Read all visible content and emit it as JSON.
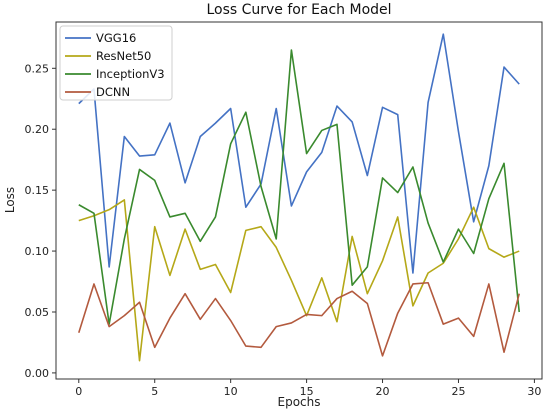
{
  "chart_data": {
    "type": "line",
    "title": "Loss Curve for Each Model",
    "xlabel": "Epochs",
    "ylabel": "Loss",
    "xlim": [
      -1.5,
      30.5
    ],
    "ylim": [
      -0.005,
      0.288
    ],
    "xticks": [
      0,
      5,
      10,
      15,
      20,
      25,
      30
    ],
    "yticks": [
      0.0,
      0.05,
      0.1,
      0.15,
      0.2,
      0.25
    ],
    "ytick_labels": [
      "0.00",
      "0.05",
      "0.10",
      "0.15",
      "0.20",
      "0.25"
    ],
    "grid": false,
    "legend_position": "top-left",
    "x": [
      0,
      1,
      2,
      3,
      4,
      5,
      6,
      7,
      8,
      9,
      10,
      11,
      12,
      13,
      14,
      15,
      16,
      17,
      18,
      19,
      20,
      21,
      22,
      23,
      24,
      25,
      26,
      27,
      28,
      29
    ],
    "series": [
      {
        "name": "VGG16",
        "color": "#4472C4",
        "values": [
          0.221,
          0.233,
          0.087,
          0.194,
          0.178,
          0.179,
          0.205,
          0.156,
          0.194,
          0.205,
          0.217,
          0.136,
          0.155,
          0.217,
          0.137,
          0.165,
          0.181,
          0.219,
          0.206,
          0.162,
          0.218,
          0.212,
          0.082,
          0.222,
          0.278,
          0.198,
          0.124,
          0.17,
          0.251,
          0.237
        ]
      },
      {
        "name": "ResNet50",
        "color": "#B5A818",
        "values": [
          0.125,
          0.129,
          0.134,
          0.142,
          0.01,
          0.12,
          0.08,
          0.118,
          0.085,
          0.089,
          0.066,
          0.117,
          0.12,
          0.103,
          0.076,
          0.047,
          0.078,
          0.042,
          0.112,
          0.065,
          0.092,
          0.128,
          0.055,
          0.082,
          0.09,
          0.11,
          0.136,
          0.102,
          0.095,
          0.1
        ]
      },
      {
        "name": "InceptionV3",
        "color": "#3A8A2E",
        "values": [
          0.138,
          0.131,
          0.04,
          0.11,
          0.167,
          0.158,
          0.128,
          0.131,
          0.108,
          0.128,
          0.188,
          0.214,
          0.153,
          0.11,
          0.265,
          0.18,
          0.199,
          0.204,
          0.072,
          0.087,
          0.16,
          0.148,
          0.169,
          0.123,
          0.091,
          0.118,
          0.098,
          0.143,
          0.172,
          0.05
        ]
      },
      {
        "name": "DCNN",
        "color": "#B35A3E",
        "values": [
          0.033,
          0.073,
          0.038,
          0.047,
          0.058,
          0.021,
          0.045,
          0.065,
          0.044,
          0.061,
          0.043,
          0.022,
          0.021,
          0.038,
          0.041,
          0.048,
          0.047,
          0.061,
          0.067,
          0.057,
          0.014,
          0.049,
          0.073,
          0.074,
          0.04,
          0.045,
          0.03,
          0.073,
          0.017,
          0.065
        ]
      }
    ]
  }
}
